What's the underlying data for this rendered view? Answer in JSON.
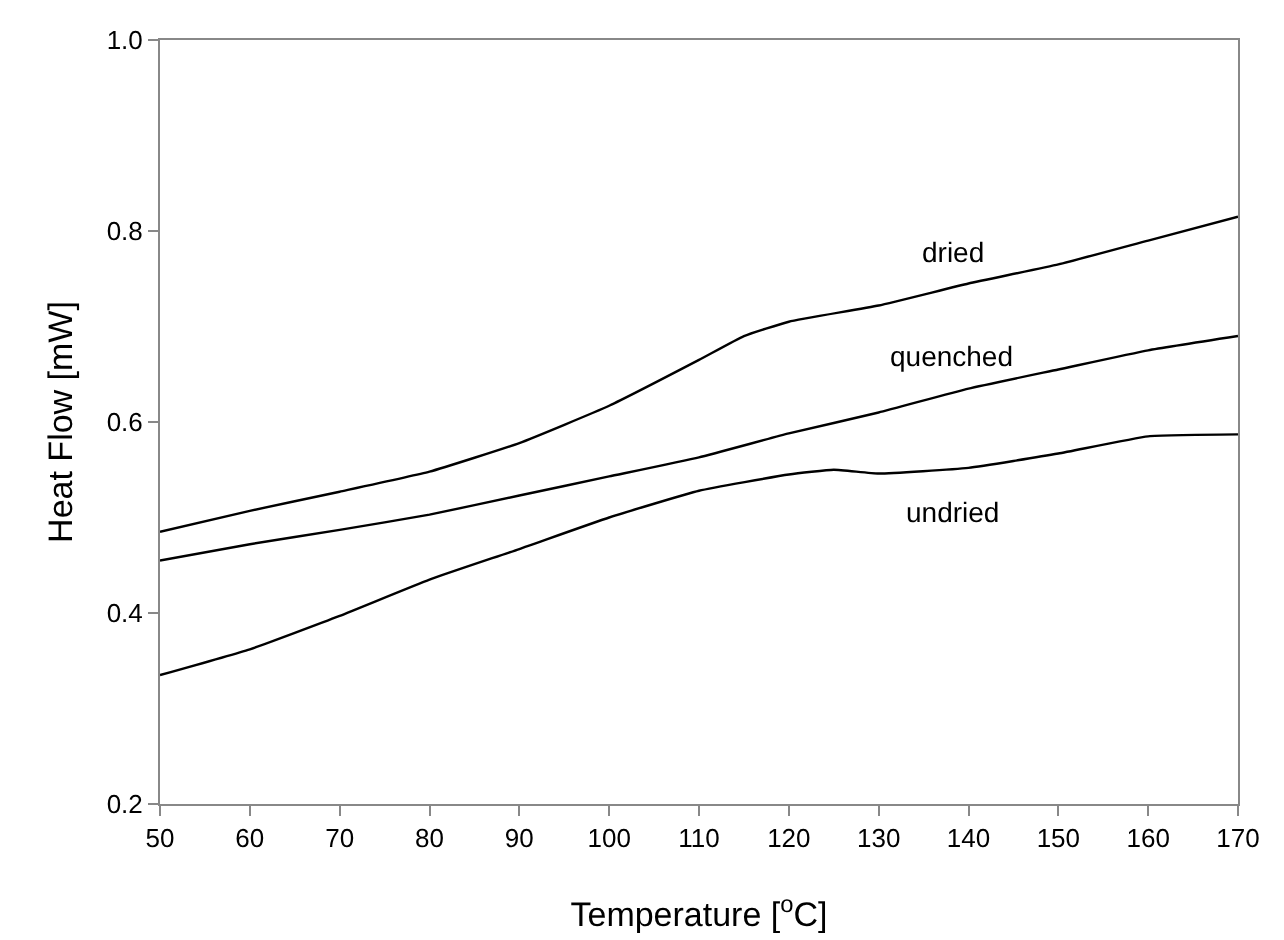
{
  "chart_data": {
    "type": "line",
    "xlabel": "Temperature [$^{o}$C]",
    "ylabel": "Heat Flow [mW]",
    "xlim": [
      50,
      170
    ],
    "xticks": [
      50,
      60,
      70,
      80,
      90,
      100,
      110,
      120,
      130,
      140,
      150,
      160,
      170
    ],
    "ylim": [
      0.2,
      1.0
    ],
    "yticks": [
      {
        "value": 0.2,
        "label": "0.2"
      },
      {
        "value": 0.4,
        "label": "0.4"
      },
      {
        "value": 0.6,
        "label": "0.6"
      },
      {
        "value": 0.8,
        "label": "0.8"
      },
      {
        "value": 1.0,
        "label": "1.0"
      }
    ],
    "grid": false,
    "legend": false,
    "marker": "none",
    "line_style": "solid",
    "series": [
      {
        "name": "dried",
        "color": "#000000",
        "x": [
          50,
          60,
          70,
          80,
          90,
          100,
          110,
          115,
          120,
          130,
          140,
          150,
          160,
          170
        ],
        "values": [
          0.485,
          0.507,
          0.527,
          0.548,
          0.578,
          0.617,
          0.665,
          0.69,
          0.705,
          0.722,
          0.745,
          0.765,
          0.79,
          0.815
        ]
      },
      {
        "name": "quenched",
        "color": "#000000",
        "x": [
          50,
          60,
          70,
          80,
          90,
          100,
          110,
          120,
          130,
          140,
          150,
          160,
          170
        ],
        "values": [
          0.455,
          0.472,
          0.487,
          0.503,
          0.523,
          0.543,
          0.563,
          0.588,
          0.61,
          0.635,
          0.655,
          0.675,
          0.69
        ]
      },
      {
        "name": "undried",
        "color": "#000000",
        "x": [
          50,
          60,
          70,
          80,
          90,
          100,
          110,
          120,
          125,
          130,
          140,
          150,
          160,
          170
        ],
        "values": [
          0.335,
          0.362,
          0.397,
          0.435,
          0.467,
          0.5,
          0.528,
          0.545,
          0.55,
          0.546,
          0.552,
          0.567,
          0.585,
          0.587
        ]
      }
    ]
  }
}
